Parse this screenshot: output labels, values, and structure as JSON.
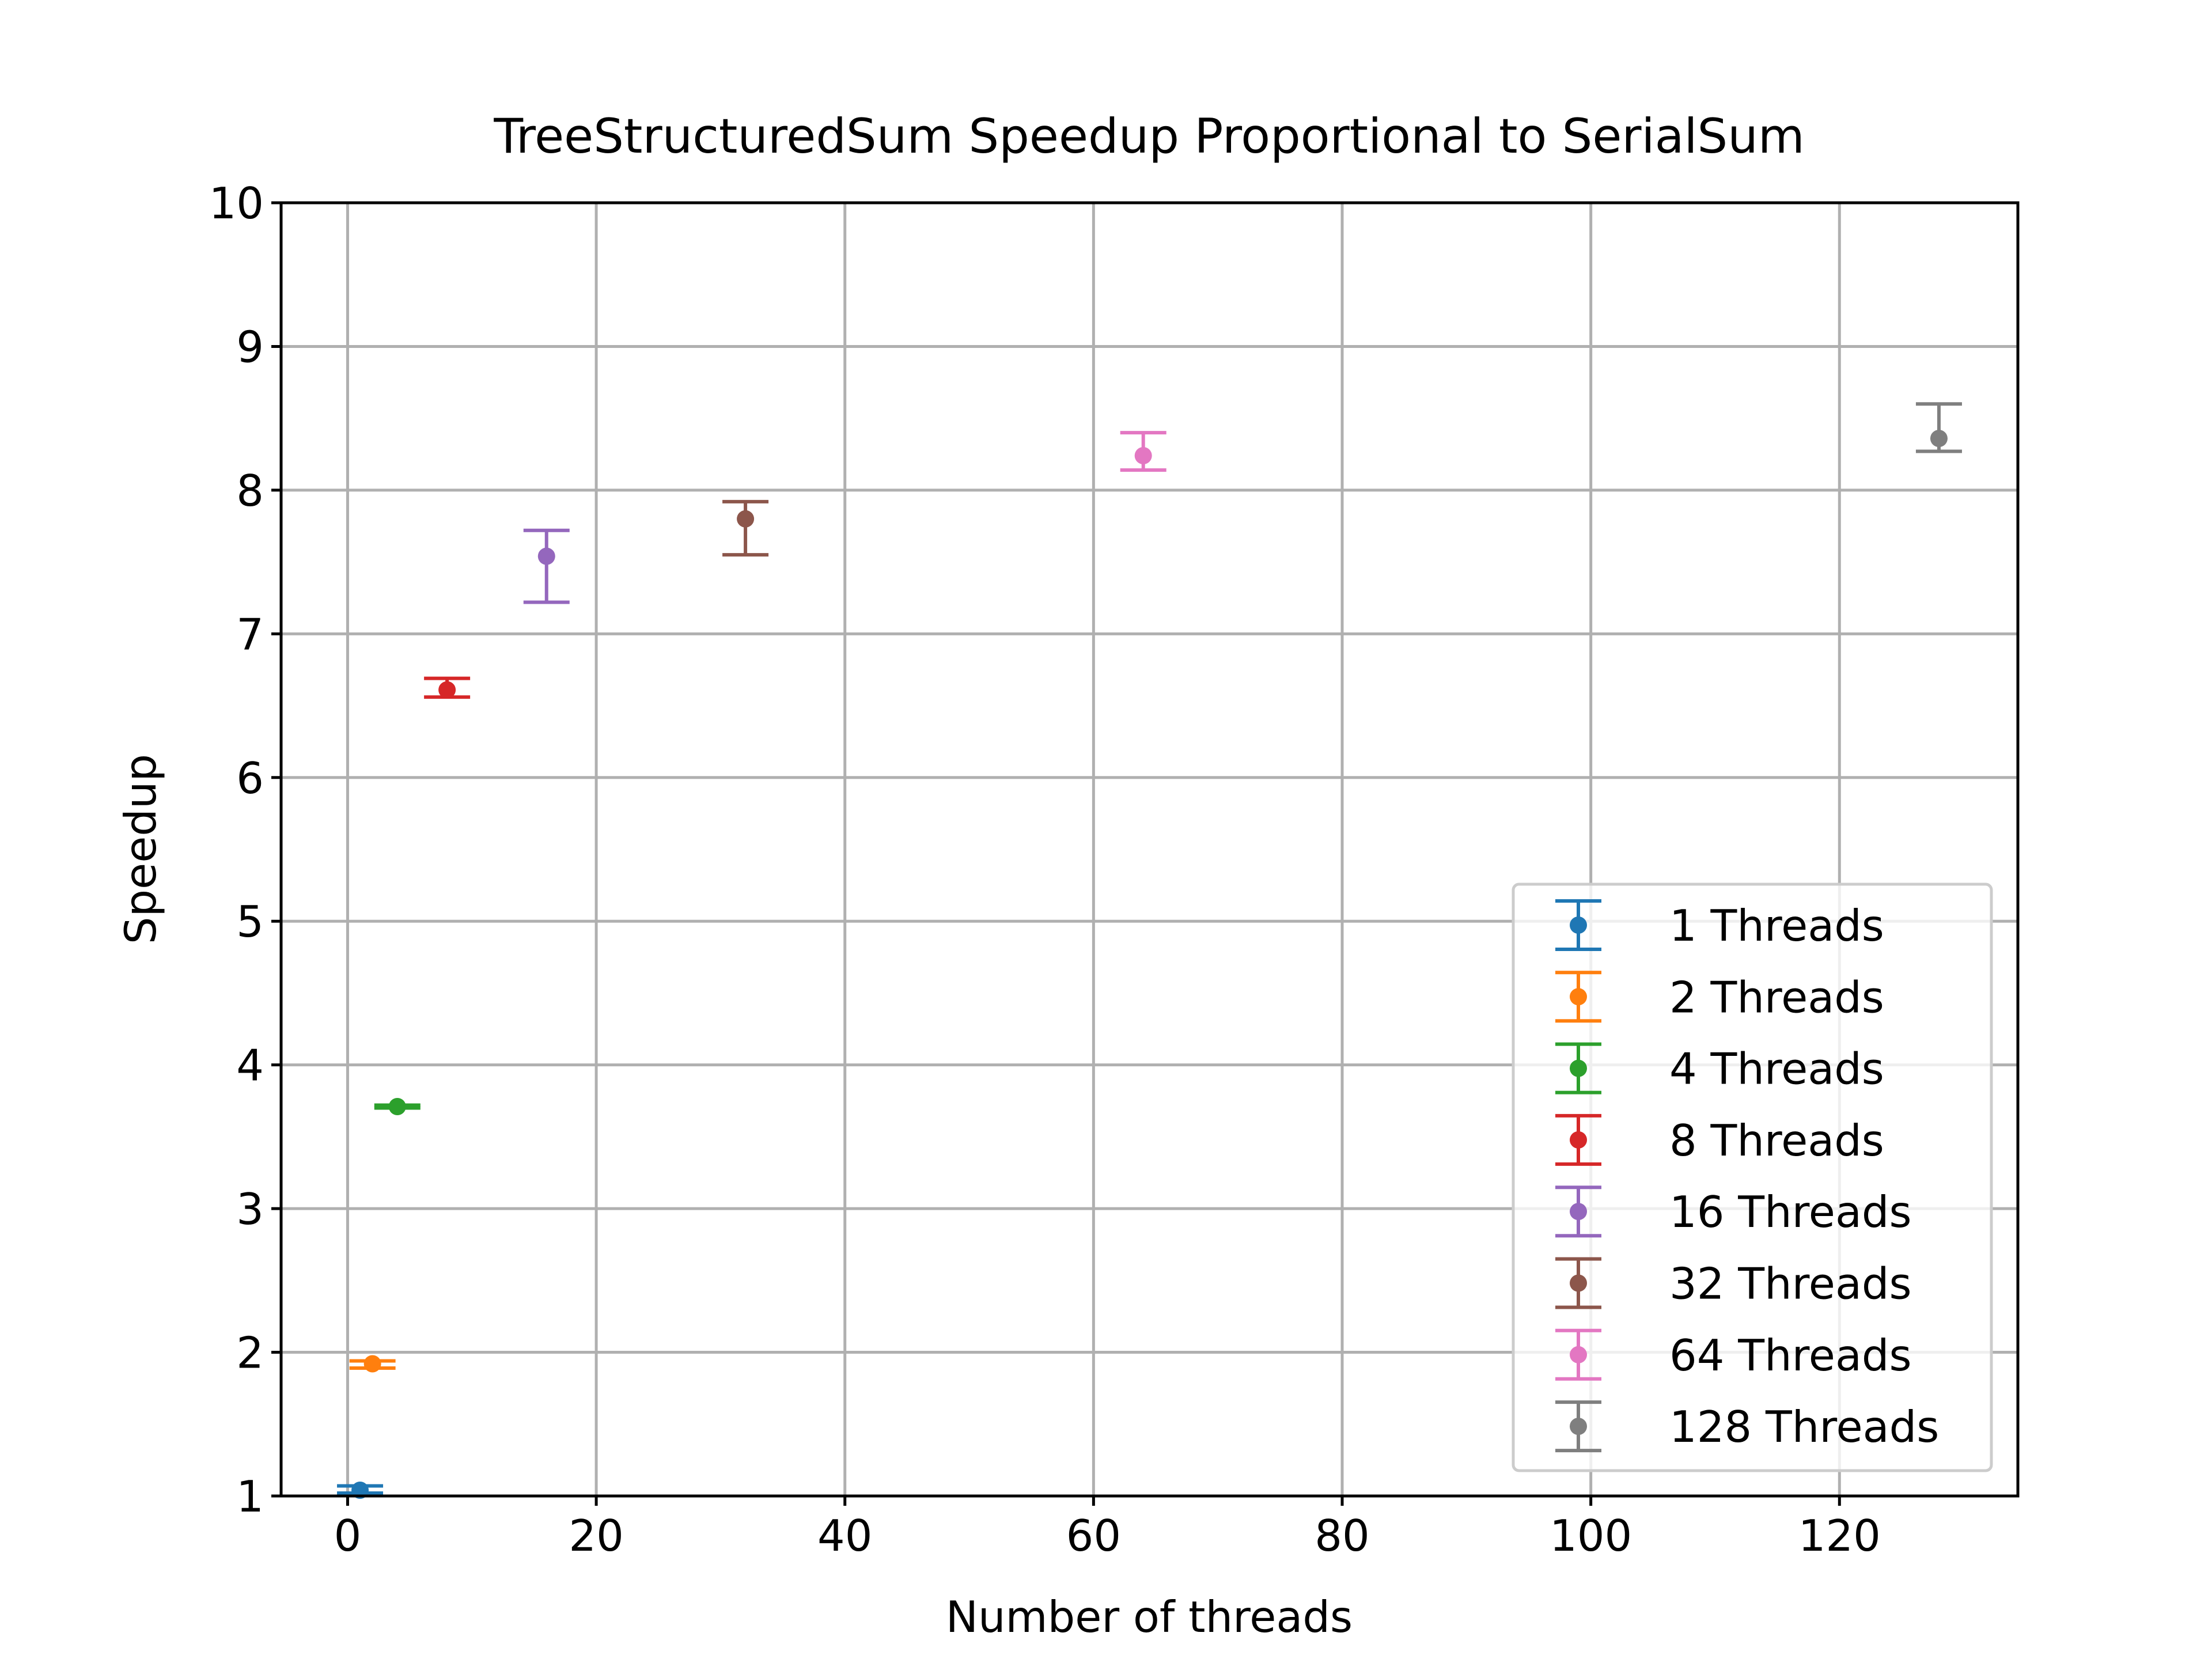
{
  "chart_data": {
    "type": "scatter",
    "title": "TreeStructuredSum Speedup Proportional to SerialSum",
    "xlabel": "Number of threads",
    "ylabel": "Speedup",
    "xlim": [
      -5.35,
      134.35
    ],
    "ylim": [
      1,
      10
    ],
    "xticks": [
      0,
      20,
      40,
      60,
      80,
      100,
      120
    ],
    "yticks": [
      1,
      2,
      3,
      4,
      5,
      6,
      7,
      8,
      9,
      10
    ],
    "grid": true,
    "legend_position": "lower right",
    "series": [
      {
        "name": "1 Threads",
        "color": "#1f77b4",
        "x": 1,
        "y": 1.04,
        "yerr_low": 1.02,
        "yerr_high": 1.07
      },
      {
        "name": "2 Threads",
        "color": "#ff7f0e",
        "x": 2,
        "y": 1.92,
        "yerr_low": 1.89,
        "yerr_high": 1.94
      },
      {
        "name": "4 Threads",
        "color": "#2ca02c",
        "x": 4,
        "y": 3.71,
        "yerr_low": 3.7,
        "yerr_high": 3.72
      },
      {
        "name": "8 Threads",
        "color": "#d62728",
        "x": 8,
        "y": 6.61,
        "yerr_low": 6.56,
        "yerr_high": 6.69
      },
      {
        "name": "16 Threads",
        "color": "#9467bd",
        "x": 16,
        "y": 7.54,
        "yerr_low": 7.22,
        "yerr_high": 7.72
      },
      {
        "name": "32 Threads",
        "color": "#8c564b",
        "x": 32,
        "y": 7.8,
        "yerr_low": 7.55,
        "yerr_high": 7.92
      },
      {
        "name": "64 Threads",
        "color": "#e377c2",
        "x": 64,
        "y": 8.24,
        "yerr_low": 8.14,
        "yerr_high": 8.4
      },
      {
        "name": "128 Threads",
        "color": "#7f7f7f",
        "x": 128,
        "y": 8.36,
        "yerr_low": 8.27,
        "yerr_high": 8.6
      }
    ]
  }
}
